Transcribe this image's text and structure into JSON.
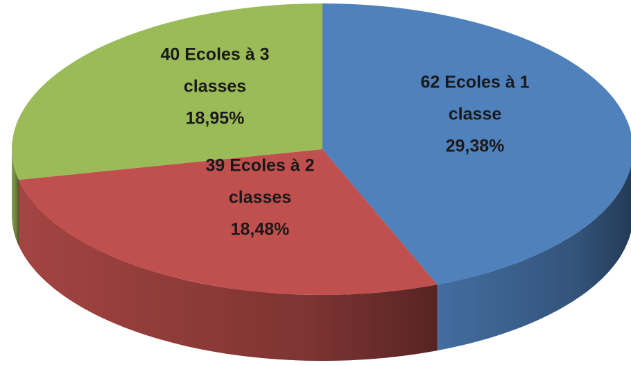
{
  "chart_data": {
    "type": "pie3d",
    "categories": [
      [
        "62 Ecoles à 1",
        "classe"
      ],
      [
        "39 Ecoles à 2",
        "classes"
      ],
      [
        "40 Ecoles à 3",
        "classes"
      ]
    ],
    "values": [
      62,
      39,
      40
    ],
    "percent_labels": [
      "29,38%",
      "18,48%",
      "18,95%"
    ],
    "colors": [
      "#4f81bd",
      "#c0504d",
      "#9bbb59"
    ]
  }
}
